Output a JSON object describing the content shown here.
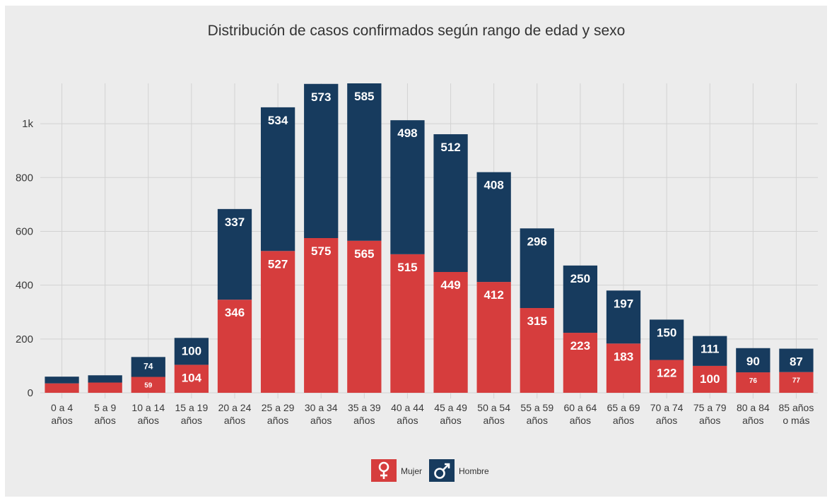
{
  "chart_data": {
    "type": "bar",
    "stacked": true,
    "title": "Distribución de casos confirmados según rango de edad y sexo",
    "xlabel": "",
    "ylabel": "",
    "ylim": [
      0,
      1150
    ],
    "yticks": [
      0,
      200,
      400,
      600,
      800,
      1000
    ],
    "ytick_labels": [
      "0",
      "200",
      "400",
      "600",
      "800",
      "1k"
    ],
    "grid": true,
    "legend_position": "bottom",
    "categories": [
      [
        "0 a 4",
        "años"
      ],
      [
        "5 a 9",
        "años"
      ],
      [
        "10 a 14",
        "años"
      ],
      [
        "15 a 19",
        "años"
      ],
      [
        "20 a 24",
        "años"
      ],
      [
        "25 a 29",
        "años"
      ],
      [
        "30 a 34",
        "años"
      ],
      [
        "35 a 39",
        "años"
      ],
      [
        "40 a 44",
        "años"
      ],
      [
        "45 a 49",
        "años"
      ],
      [
        "50 a 54",
        "años"
      ],
      [
        "55 a 59",
        "años"
      ],
      [
        "60 a 64",
        "años"
      ],
      [
        "65 a 69",
        "años"
      ],
      [
        "70 a 74",
        "años"
      ],
      [
        "75 a 79",
        "años"
      ],
      [
        "80 a 84",
        "años"
      ],
      [
        "85 años",
        "o más"
      ]
    ],
    "series": [
      {
        "name": "Mujer",
        "color": "#d63d3d",
        "values": [
          35,
          38,
          59,
          104,
          346,
          527,
          575,
          565,
          515,
          449,
          412,
          315,
          223,
          183,
          122,
          100,
          76,
          77
        ],
        "labels": [
          "",
          "",
          "59",
          "104",
          "346",
          "527",
          "575",
          "565",
          "515",
          "449",
          "412",
          "315",
          "223",
          "183",
          "122",
          "100",
          "76",
          "77"
        ]
      },
      {
        "name": "Hombre",
        "color": "#173b5e",
        "values": [
          25,
          27,
          74,
          100,
          337,
          534,
          573,
          585,
          498,
          512,
          408,
          296,
          250,
          197,
          150,
          111,
          90,
          87
        ],
        "labels": [
          "",
          "",
          "74",
          "100",
          "337",
          "534",
          "573",
          "585",
          "498",
          "512",
          "408",
          "296",
          "250",
          "197",
          "150",
          "111",
          "90",
          "87"
        ]
      }
    ],
    "legend": [
      {
        "name": "Mujer",
        "icon": "female-icon",
        "color": "#d63d3d"
      },
      {
        "name": "Hombre",
        "icon": "male-icon",
        "color": "#173b5e"
      }
    ]
  }
}
